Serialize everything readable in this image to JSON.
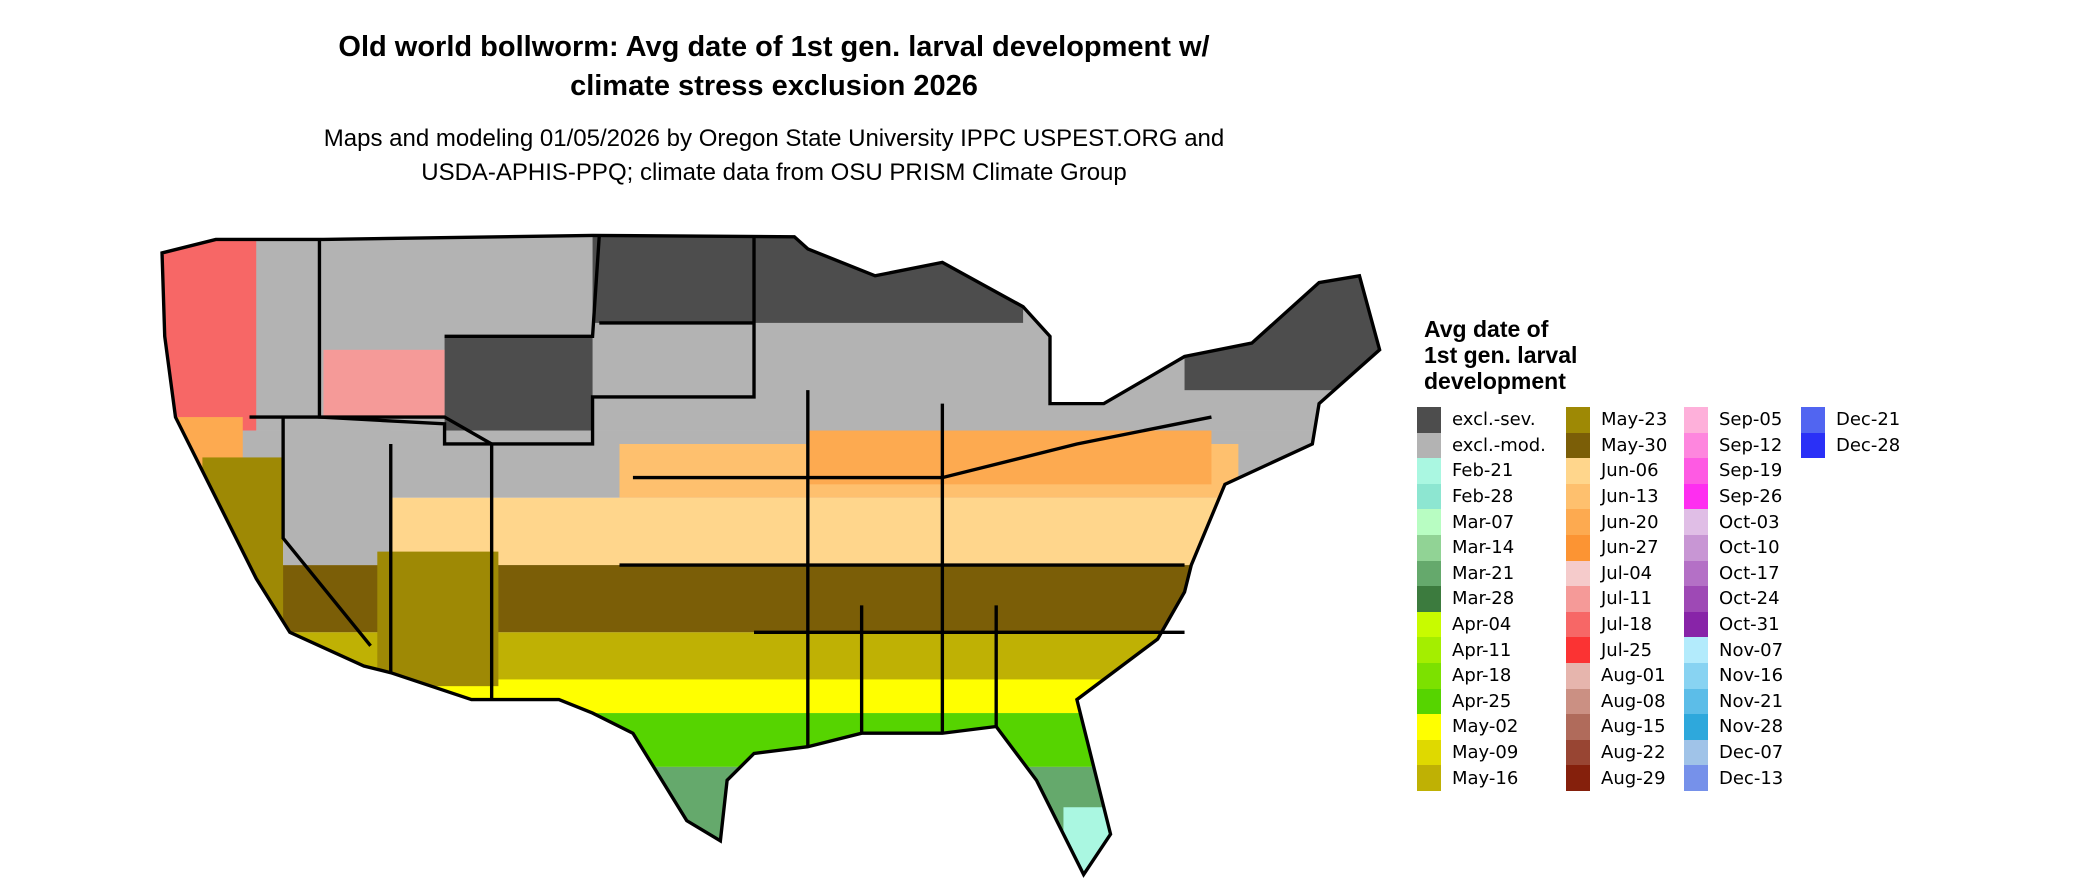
{
  "title_line1": "Old world bollworm: Avg date of 1st gen. larval development w/",
  "title_line2": "climate stress exclusion 2026",
  "subtitle_line1": "Maps and modeling 01/05/2026 by Oregon State University IPPC USPEST.ORG and",
  "subtitle_line2": "USDA-APHIS-PPQ; climate data from OSU PRISM Climate Group",
  "legend": {
    "title_lines": [
      "Avg date of",
      "1st gen. larval",
      "development"
    ],
    "columns": [
      [
        {
          "label": "excl.-sev.",
          "color": "#4d4d4d"
        },
        {
          "label": "excl.-mod.",
          "color": "#b3b3b3"
        },
        {
          "label": "Feb-21",
          "color": "#aaf7e1"
        },
        {
          "label": "Feb-28",
          "color": "#8de6d1"
        },
        {
          "label": "Mar-07",
          "color": "#b8fdc2"
        },
        {
          "label": "Mar-14",
          "color": "#91d395"
        },
        {
          "label": "Mar-21",
          "color": "#65a96c"
        },
        {
          "label": "Mar-28",
          "color": "#3c7b3e"
        },
        {
          "label": "Apr-04",
          "color": "#c8fb00"
        },
        {
          "label": "Apr-11",
          "color": "#a4ee00"
        },
        {
          "label": "Apr-18",
          "color": "#7ce100"
        },
        {
          "label": "Apr-25",
          "color": "#56d400"
        },
        {
          "label": "May-02",
          "color": "#ffff00"
        },
        {
          "label": "May-09",
          "color": "#dfd900"
        },
        {
          "label": "May-16",
          "color": "#bfb104"
        }
      ],
      [
        {
          "label": "May-23",
          "color": "#9e8905"
        },
        {
          "label": "May-30",
          "color": "#7b5e07"
        },
        {
          "label": "Jun-06",
          "color": "#ffd68c"
        },
        {
          "label": "Jun-13",
          "color": "#fec06e"
        },
        {
          "label": "Jun-20",
          "color": "#fdaa50"
        },
        {
          "label": "Jun-27",
          "color": "#fc9433"
        },
        {
          "label": "Jul-04",
          "color": "#f5cbcb"
        },
        {
          "label": "Jul-11",
          "color": "#f59a98"
        },
        {
          "label": "Jul-18",
          "color": "#f76766"
        },
        {
          "label": "Jul-25",
          "color": "#fb3333"
        },
        {
          "label": "Aug-01",
          "color": "#e6b5ad"
        },
        {
          "label": "Aug-08",
          "color": "#cb9083"
        },
        {
          "label": "Aug-15",
          "color": "#b06b5b"
        },
        {
          "label": "Aug-22",
          "color": "#984533"
        },
        {
          "label": "Aug-29",
          "color": "#85200c"
        }
      ],
      [
        {
          "label": "Sep-05",
          "color": "#feb0da"
        },
        {
          "label": "Sep-12",
          "color": "#fe86de"
        },
        {
          "label": "Sep-19",
          "color": "#fe5ae3"
        },
        {
          "label": "Sep-26",
          "color": "#fe2ef0"
        },
        {
          "label": "Oct-03",
          "color": "#e0bee6"
        },
        {
          "label": "Oct-10",
          "color": "#c896d4"
        },
        {
          "label": "Oct-17",
          "color": "#b470c6"
        },
        {
          "label": "Oct-24",
          "color": "#9e49b5"
        },
        {
          "label": "Oct-31",
          "color": "#8824a8"
        },
        {
          "label": "Nov-07",
          "color": "#b3ebfc"
        },
        {
          "label": "Nov-16",
          "color": "#88d3f2"
        },
        {
          "label": "Nov-21",
          "color": "#5cbde8"
        },
        {
          "label": "Nov-28",
          "color": "#2ea8dc"
        },
        {
          "label": "Dec-07",
          "color": "#a0c3e8"
        },
        {
          "label": "Dec-13",
          "color": "#7691ea"
        }
      ],
      [
        {
          "label": "Dec-21",
          "color": "#5165f1"
        },
        {
          "label": "Dec-28",
          "color": "#2a30f7"
        }
      ]
    ]
  }
}
